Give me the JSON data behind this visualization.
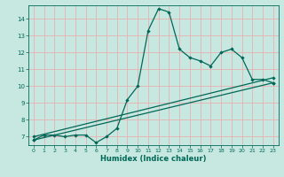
{
  "xlabel": "Humidex (Indice chaleur)",
  "xlim": [
    -0.5,
    23.5
  ],
  "ylim": [
    6.5,
    14.8
  ],
  "yticks": [
    7,
    8,
    9,
    10,
    11,
    12,
    13,
    14
  ],
  "xticks": [
    0,
    1,
    2,
    3,
    4,
    5,
    6,
    7,
    8,
    9,
    10,
    11,
    12,
    13,
    14,
    15,
    16,
    17,
    18,
    19,
    20,
    21,
    22,
    23
  ],
  "background_color": "#c6e8e0",
  "grid_color": "#e8b0b0",
  "line_color": "#006858",
  "line1_x": [
    0,
    1,
    2,
    3,
    4,
    5,
    6,
    7,
    8,
    9,
    10,
    11,
    12,
    13,
    14,
    15,
    16,
    17,
    18,
    19,
    20,
    21,
    22,
    23
  ],
  "line1_y": [
    6.8,
    7.1,
    7.1,
    7.0,
    7.1,
    7.1,
    6.65,
    7.0,
    7.5,
    9.2,
    10.0,
    13.3,
    14.6,
    14.4,
    12.2,
    11.7,
    11.5,
    11.2,
    12.0,
    12.2,
    11.7,
    10.4,
    10.4,
    10.2
  ],
  "line2_x": [
    0,
    23
  ],
  "line2_y": [
    7.0,
    10.5
  ],
  "line3_x": [
    0,
    23
  ],
  "line3_y": [
    6.8,
    10.2
  ],
  "marker": "D",
  "markersize": 2.2,
  "linewidth": 0.9
}
